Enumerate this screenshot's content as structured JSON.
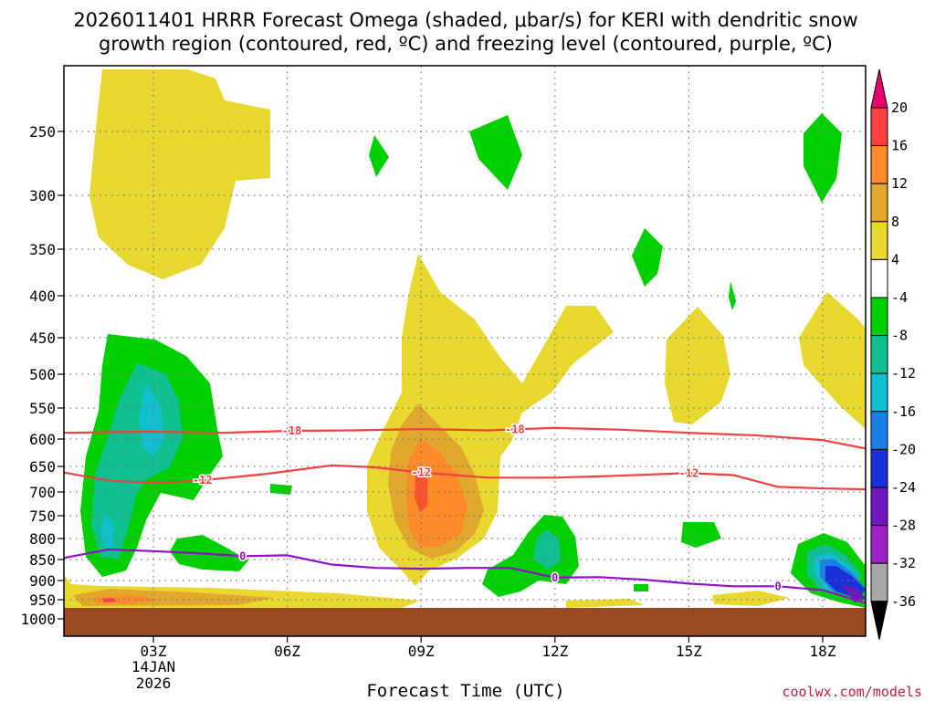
{
  "chart_data": {
    "type": "heatmap",
    "title_line1": "2026011401 HRRR Forecast Omega (shaded, μbar/s) for KERI with dendritic snow",
    "title_line2": "growth region (contoured, red, ºC) and freezing level (contoured, purple, ºC)",
    "xlabel": "Forecast Time (UTC)",
    "ylabel": "",
    "x_range_hours": [
      1,
      19
    ],
    "x_ticks": [
      {
        "label": "03Z",
        "hour": 3
      },
      {
        "label": "06Z",
        "hour": 6
      },
      {
        "label": "09Z",
        "hour": 9
      },
      {
        "label": "12Z",
        "hour": 12
      },
      {
        "label": "15Z",
        "hour": 15
      },
      {
        "label": "18Z",
        "hour": 18
      }
    ],
    "date_label": [
      "14JAN",
      "2026"
    ],
    "y_axis": "pressure (hPa), log-like",
    "y_range": [
      1000,
      200
    ],
    "y_ticks": [
      250,
      300,
      350,
      400,
      450,
      500,
      550,
      600,
      650,
      700,
      750,
      800,
      850,
      900,
      950,
      1000
    ],
    "colorbar": {
      "labels": [
        "20",
        "16",
        "12",
        "8",
        "4",
        "-4",
        "-8",
        "-12",
        "-16",
        "-20",
        "-24",
        "-28",
        "-32",
        "-36"
      ],
      "colors": [
        "#e8006e",
        "#ff4040",
        "#ff8a2a",
        "#e2a82e",
        "#e8d830",
        "#ffffff",
        "#00d000",
        "#10c090",
        "#10c0d0",
        "#1a80e8",
        "#1a30d8",
        "#7018c0",
        "#a020c8",
        "#a8a8a8",
        "#000000"
      ]
    },
    "contours": [
      {
        "name": "dgz -18C",
        "label": "-18",
        "color": "#f04040",
        "points": [
          [
            1,
            590
          ],
          [
            3,
            588
          ],
          [
            4.5,
            590
          ],
          [
            6,
            587
          ],
          [
            7.5,
            586
          ],
          [
            9,
            584
          ],
          [
            10.5,
            586
          ],
          [
            12,
            582
          ],
          [
            13.5,
            585
          ],
          [
            15,
            590
          ],
          [
            16.5,
            594
          ],
          [
            18,
            602
          ],
          [
            19,
            618
          ]
        ],
        "labels_at": [
          6.1,
          11.1
        ]
      },
      {
        "name": "dgz -12C",
        "label": "-12",
        "color": "#f04040",
        "points": [
          [
            1,
            662
          ],
          [
            2,
            678
          ],
          [
            3,
            682
          ],
          [
            4,
            678
          ],
          [
            5.5,
            665
          ],
          [
            7,
            648
          ],
          [
            8,
            652
          ],
          [
            9,
            662
          ],
          [
            10.5,
            672
          ],
          [
            12,
            672
          ],
          [
            13.5,
            668
          ],
          [
            15,
            663
          ],
          [
            16,
            667
          ],
          [
            17,
            690
          ],
          [
            18,
            693
          ],
          [
            19,
            695
          ]
        ],
        "labels_at": [
          4.1,
          9.0,
          15.0
        ]
      },
      {
        "name": "freezing level 0C",
        "label": "0",
        "color": "#9010c8",
        "points": [
          [
            1,
            846
          ],
          [
            2,
            826
          ],
          [
            3,
            830
          ],
          [
            4,
            835
          ],
          [
            5,
            842
          ],
          [
            6,
            840
          ],
          [
            7,
            862
          ],
          [
            8,
            870
          ],
          [
            9,
            872
          ],
          [
            10,
            870
          ],
          [
            11,
            870
          ],
          [
            12,
            893
          ],
          [
            13,
            892
          ],
          [
            14,
            898
          ],
          [
            15,
            908
          ],
          [
            16,
            915
          ],
          [
            17,
            915
          ],
          [
            18,
            925
          ],
          [
            19,
            960
          ]
        ],
        "labels_at": [
          5.0,
          12.0,
          17.0
        ]
      }
    ],
    "ground_level_hpa": 975,
    "notes": "Shaded omega field: positive (ascent, yellow/orange) and negative (green/cyan/blue) regions as depicted."
  },
  "credit": "coolwx.com/models"
}
